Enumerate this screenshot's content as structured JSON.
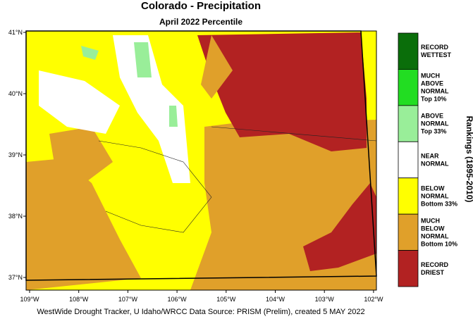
{
  "header": {
    "title": "Colorado - Precipitation",
    "subtitle": "April 2022 Percentile"
  },
  "map": {
    "lat_labels": [
      "41°N",
      "40°N",
      "39°N",
      "38°N",
      "37°N"
    ],
    "lon_labels": [
      "109°W",
      "108°W",
      "107°W",
      "106°W",
      "105°W",
      "104°W",
      "103°W",
      "102°W"
    ]
  },
  "legend": {
    "title": "Rankings (1895-2010)",
    "items": [
      {
        "lines": [
          "RECORD",
          "WETTEST"
        ],
        "color": "#0a6e0a"
      },
      {
        "lines": [
          "MUCH",
          "ABOVE",
          "NORMAL",
          "Top 10%"
        ],
        "color": "#22dd22"
      },
      {
        "lines": [
          "ABOVE",
          "NORMAL",
          "Top 33%"
        ],
        "color": "#99ee99"
      },
      {
        "lines": [
          "NEAR",
          "NORMAL"
        ],
        "color": "#ffffff"
      },
      {
        "lines": [
          "BELOW",
          "NORMAL",
          "Bottom 33%"
        ],
        "color": "#ffff00"
      },
      {
        "lines": [
          "MUCH",
          "BELOW",
          "NORMAL",
          "Bottom 10%"
        ],
        "color": "#e0a02a"
      },
      {
        "lines": [
          "RECORD",
          "DRIEST"
        ],
        "color": "#b22222"
      }
    ]
  },
  "footer": "WestWide Drought Tracker, U Idaho/WRCC Data Source: PRISM (Prelim), created  5 MAY 2022"
}
